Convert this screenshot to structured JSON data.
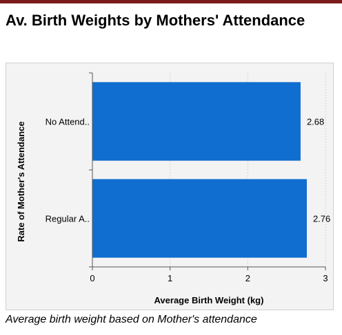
{
  "title": "Av. Birth Weights by Mothers' Attendance",
  "caption": "Average birth weight based on Mother's attendance",
  "colors": {
    "bar": "#0f6ecf",
    "rule": "#7b1a1a",
    "panel": "#f3f3f3"
  },
  "chart_data": {
    "type": "bar",
    "orientation": "horizontal",
    "categories": [
      "No Attend..",
      "Regular A.."
    ],
    "values": [
      2.68,
      2.76
    ],
    "data_labels": [
      "2.68",
      "2.76"
    ],
    "xlabel": "Average Birth Weight (kg)",
    "ylabel": "Rate of Mother's Attendance",
    "xlim": [
      0,
      3
    ],
    "xticks": [
      0,
      1,
      2,
      3
    ],
    "grid": "vertical dotted"
  }
}
